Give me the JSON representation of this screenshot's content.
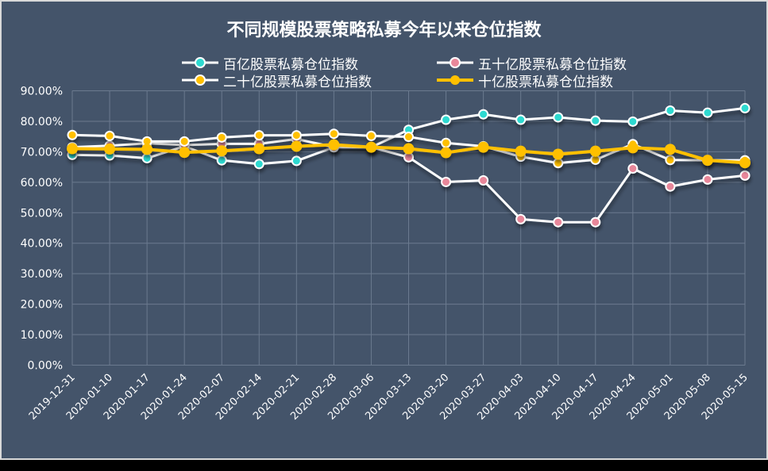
{
  "chart_data": {
    "type": "line",
    "title": "不同规模股票策略私募今年以来仓位指数",
    "xlabel": "",
    "ylabel": "",
    "ylim": [
      0,
      90
    ],
    "yticks": [
      "0.00%",
      "10.00%",
      "20.00%",
      "30.00%",
      "40.00%",
      "50.00%",
      "60.00%",
      "70.00%",
      "80.00%",
      "90.00%"
    ],
    "grid": true,
    "legend_position": "top",
    "categories": [
      "2019-12-31",
      "2020-01-10",
      "2020-01-17",
      "2020-01-24",
      "2020-02-07",
      "2020-02-14",
      "2020-02-21",
      "2020-02-28",
      "2020-03-06",
      "2020-03-13",
      "2020-03-20",
      "2020-03-27",
      "2020-04-03",
      "2020-04-10",
      "2020-04-17",
      "2020-04-24",
      "2020-05-01",
      "2020-05-08",
      "2020-05-15"
    ],
    "series": [
      {
        "name": "百亿股票私募仓位指数",
        "line_color": "#ffffff",
        "marker_color": "#2ed9d0",
        "line_width": 3,
        "values": [
          69.0,
          68.8,
          67.9,
          71.8,
          67.2,
          66.0,
          67.0,
          71.5,
          71.5,
          77.2,
          80.5,
          82.3,
          80.5,
          81.3,
          80.2,
          79.9,
          83.5,
          82.8,
          84.3
        ]
      },
      {
        "name": "五十亿股票私募仓位指数",
        "line_color": "#ffffff",
        "marker_color": "#e8879a",
        "line_width": 3,
        "values": [
          71.5,
          72.0,
          72.8,
          72.2,
          72.6,
          72.6,
          74.2,
          71.5,
          71.5,
          68.2,
          60.1,
          60.6,
          47.9,
          46.9,
          46.9,
          64.5,
          58.6,
          60.9,
          62.2
        ]
      },
      {
        "name": "二十亿股票私募仓位指数",
        "line_color": "#ffffff",
        "marker_color": "#ffc000",
        "line_width": 3,
        "values": [
          75.5,
          75.2,
          73.4,
          73.4,
          74.7,
          75.4,
          75.4,
          75.9,
          75.2,
          74.9,
          72.9,
          71.8,
          68.4,
          66.3,
          67.4,
          72.5,
          67.3,
          67.2,
          67.2
        ]
      },
      {
        "name": "十亿股票私募仓位指数",
        "line_color": "#ffc000",
        "marker_color": "#ffc000",
        "line_width": 4,
        "values": [
          71.0,
          70.9,
          70.8,
          69.8,
          70.3,
          71.0,
          71.8,
          72.3,
          71.5,
          71.0,
          69.7,
          71.5,
          70.2,
          69.2,
          70.2,
          71.3,
          70.8,
          67.2,
          66.4
        ]
      }
    ]
  },
  "colors": {
    "background": "#44546a",
    "frame": "#d9d9d9",
    "grid": "#6b7a8f",
    "text": "#ffffff"
  }
}
